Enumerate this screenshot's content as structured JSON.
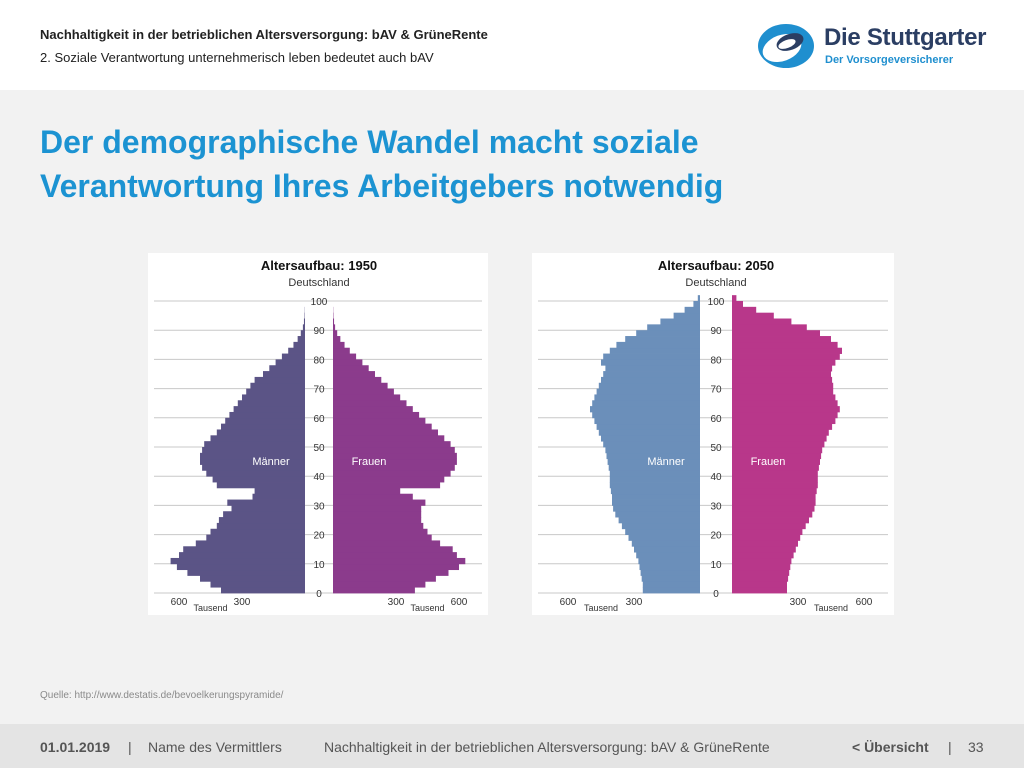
{
  "header": {
    "title": "Nachhaltigkeit in der betrieblichen Altersversorgung: bAV & GrüneRente",
    "subtitle": "2. Soziale Verantwortung unternehmerisch leben bedeutet auch bAV",
    "logo_name": "Die Stuttgarter",
    "logo_tagline": "Der Vorsorgeversicherer"
  },
  "headline": {
    "line1": "Der demographische Wandel macht soziale",
    "line2": "Verantwortung Ihres Arbeitgebers notwendig"
  },
  "colors": {
    "accent": "#1c93d2",
    "men_1950": "#5b5486",
    "women_1950": "#8b3b8c",
    "men_2050": "#6b8fba",
    "women_2050": "#b8378a"
  },
  "chart_data": [
    {
      "type": "bar",
      "title": "Altersaufbau: 1950",
      "subtitle": "Deutschland",
      "left_label": "Männer",
      "right_label": "Frauen",
      "unit_label": "Tausend",
      "age_ticks": [
        "0",
        "10",
        "20",
        "30",
        "40",
        "50",
        "60",
        "70",
        "80",
        "90",
        "100"
      ],
      "value_ticks": [
        "600",
        "300",
        "300",
        "600"
      ],
      "xlim": [
        0,
        700
      ],
      "ages": [
        0,
        2,
        4,
        6,
        8,
        10,
        12,
        14,
        16,
        18,
        20,
        22,
        24,
        26,
        28,
        30,
        32,
        34,
        36,
        38,
        40,
        42,
        44,
        46,
        48,
        50,
        52,
        54,
        56,
        58,
        60,
        62,
        64,
        66,
        68,
        70,
        72,
        74,
        76,
        78,
        80,
        82,
        84,
        86,
        88,
        90,
        92,
        94,
        96,
        98,
        100
      ],
      "men": [
        400,
        450,
        500,
        560,
        610,
        640,
        600,
        580,
        520,
        470,
        450,
        420,
        410,
        390,
        350,
        370,
        250,
        240,
        420,
        440,
        470,
        490,
        500,
        500,
        490,
        480,
        450,
        420,
        400,
        380,
        360,
        340,
        320,
        300,
        280,
        260,
        240,
        200,
        170,
        140,
        110,
        80,
        55,
        35,
        20,
        10,
        5,
        2,
        1,
        0,
        0
      ],
      "women": [
        390,
        440,
        490,
        550,
        600,
        630,
        590,
        570,
        510,
        470,
        450,
        430,
        420,
        420,
        420,
        440,
        380,
        320,
        510,
        530,
        560,
        580,
        590,
        590,
        580,
        560,
        530,
        500,
        470,
        440,
        410,
        380,
        350,
        320,
        290,
        260,
        230,
        200,
        170,
        140,
        110,
        80,
        55,
        35,
        20,
        10,
        5,
        2,
        1,
        0,
        0
      ]
    },
    {
      "type": "bar",
      "title": "Altersaufbau: 2050",
      "subtitle": "Deutschland",
      "left_label": "Männer",
      "right_label": "Frauen",
      "unit_label": "Tausend",
      "age_ticks": [
        "0",
        "10",
        "20",
        "30",
        "40",
        "50",
        "60",
        "70",
        "80",
        "90",
        "100"
      ],
      "value_ticks": [
        "600",
        "300",
        "300",
        "600"
      ],
      "xlim": [
        0,
        700
      ],
      "ages": [
        0,
        2,
        4,
        6,
        8,
        10,
        12,
        14,
        16,
        18,
        20,
        22,
        24,
        26,
        28,
        30,
        32,
        34,
        36,
        38,
        40,
        42,
        44,
        46,
        48,
        50,
        52,
        54,
        56,
        58,
        60,
        62,
        64,
        66,
        68,
        70,
        72,
        74,
        76,
        78,
        80,
        82,
        84,
        86,
        88,
        90,
        92,
        94,
        96,
        98,
        100
      ],
      "men": [
        260,
        260,
        265,
        270,
        275,
        280,
        290,
        300,
        310,
        325,
        340,
        355,
        370,
        385,
        395,
        400,
        400,
        405,
        410,
        410,
        410,
        415,
        420,
        425,
        430,
        440,
        450,
        460,
        470,
        480,
        490,
        500,
        490,
        480,
        470,
        460,
        450,
        440,
        430,
        450,
        440,
        410,
        380,
        340,
        290,
        240,
        180,
        120,
        70,
        30,
        10
      ],
      "women": [
        250,
        250,
        255,
        260,
        265,
        270,
        280,
        290,
        300,
        310,
        320,
        335,
        350,
        365,
        375,
        380,
        380,
        385,
        390,
        390,
        390,
        395,
        400,
        405,
        410,
        420,
        430,
        440,
        455,
        470,
        480,
        490,
        480,
        470,
        460,
        460,
        455,
        450,
        455,
        470,
        490,
        500,
        480,
        450,
        400,
        340,
        270,
        190,
        110,
        50,
        20
      ]
    }
  ],
  "source": "Quelle: http://www.destatis.de/bevoelkerungspyramide/",
  "footer": {
    "date": "01.01.2019",
    "separator": "|",
    "agent": "Name des Vermittlers",
    "topic": "Nachhaltigkeit in der betrieblichen Altersversorgung: bAV & GrüneRente",
    "overview_link": "< Übersicht",
    "page": "33"
  }
}
